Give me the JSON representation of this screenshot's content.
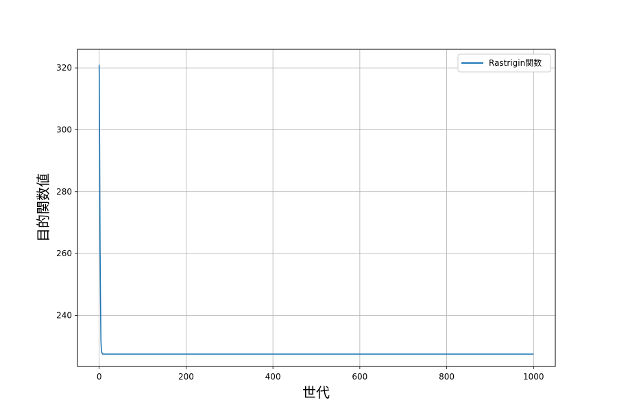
{
  "chart_data": {
    "type": "line",
    "title": "",
    "xlabel": "世代",
    "ylabel": "目的関数値",
    "xlim": [
      -50,
      1050
    ],
    "ylim": [
      223.5,
      326
    ],
    "xticks": [
      0,
      200,
      400,
      600,
      800,
      1000
    ],
    "yticks": [
      240,
      260,
      280,
      300,
      320
    ],
    "grid": true,
    "legend_position": "top-right",
    "series": [
      {
        "name": "Rastrigin関数",
        "color": "#1f77b4",
        "x": [
          0,
          1,
          2,
          3,
          4,
          5,
          6,
          8,
          10,
          20,
          50,
          100,
          200,
          300,
          400,
          500,
          600,
          700,
          800,
          900,
          1000
        ],
        "y": [
          321,
          295,
          262,
          245,
          232,
          229,
          228,
          227.5,
          227.5,
          227.5,
          227.5,
          227.5,
          227.5,
          227.5,
          227.5,
          227.5,
          227.5,
          227.5,
          227.5,
          227.5,
          227.5
        ]
      }
    ]
  }
}
